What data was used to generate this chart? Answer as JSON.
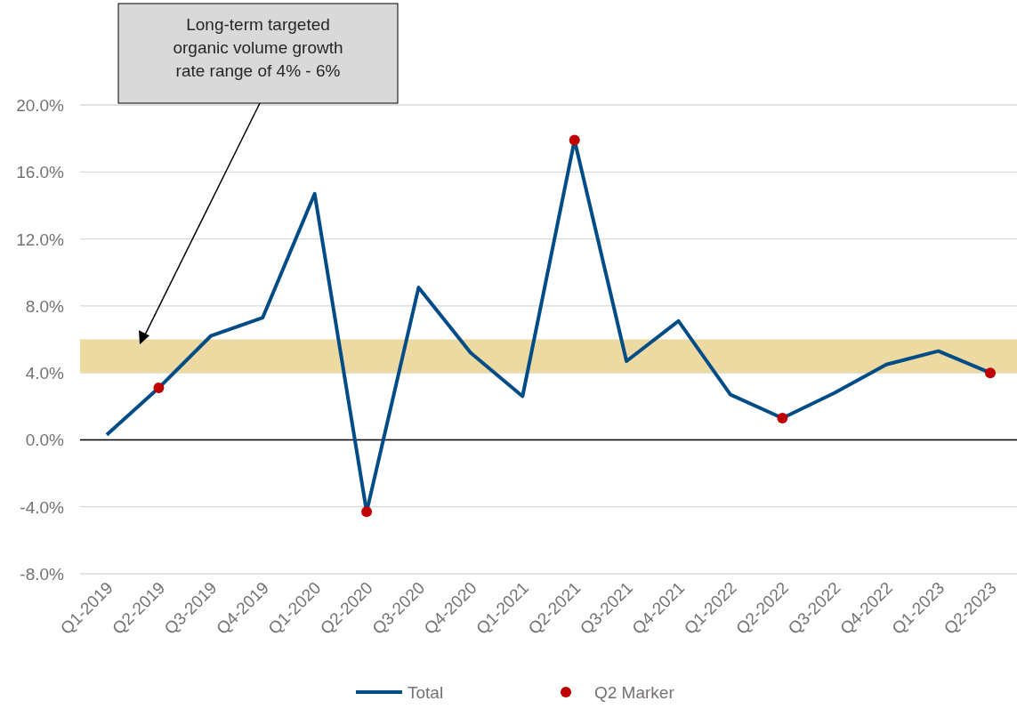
{
  "chart_data": {
    "type": "line",
    "categories": [
      "Q1-2019",
      "Q2-2019",
      "Q3-2019",
      "Q4-2019",
      "Q1-2020",
      "Q2-2020",
      "Q3-2020",
      "Q4-2020",
      "Q1-2021",
      "Q2-2021",
      "Q3-2021",
      "Q4-2021",
      "Q1-2022",
      "Q2-2022",
      "Q3-2022",
      "Q4-2022",
      "Q1-2023",
      "Q2-2023"
    ],
    "series": [
      {
        "name": "Total",
        "color": "#004c87",
        "values": [
          0.3,
          3.1,
          6.2,
          7.3,
          14.7,
          -4.3,
          9.1,
          5.2,
          2.6,
          17.9,
          4.7,
          7.1,
          2.7,
          1.3,
          2.8,
          4.5,
          5.3,
          4.0
        ]
      },
      {
        "name": "Q2 Marker",
        "type": "scatter",
        "color": "#c00000",
        "x": [
          "Q2-2019",
          "Q2-2020",
          "Q2-2021",
          "Q2-2022",
          "Q2-2023"
        ],
        "values": [
          3.1,
          -4.3,
          17.9,
          1.3,
          4.0
        ]
      }
    ],
    "ylim": [
      -8,
      20
    ],
    "yticks": [
      {
        "value": -8,
        "label": "-8.0%"
      },
      {
        "value": -4,
        "label": "-4.0%"
      },
      {
        "value": 0,
        "label": "0.0%"
      },
      {
        "value": 4,
        "label": "4.0%"
      },
      {
        "value": 8,
        "label": "8.0%"
      },
      {
        "value": 12,
        "label": "12.0%"
      },
      {
        "value": 16,
        "label": "16.0%"
      },
      {
        "value": 20,
        "label": "20.0%"
      }
    ],
    "bands": [
      {
        "axis": "y",
        "from": 4,
        "to": 6,
        "color": "#ecdaa2"
      }
    ],
    "annotations": [
      "Long-term targeted organic volume growth rate range of 4% - 6%"
    ],
    "grid": "y",
    "legend": "bottom"
  }
}
